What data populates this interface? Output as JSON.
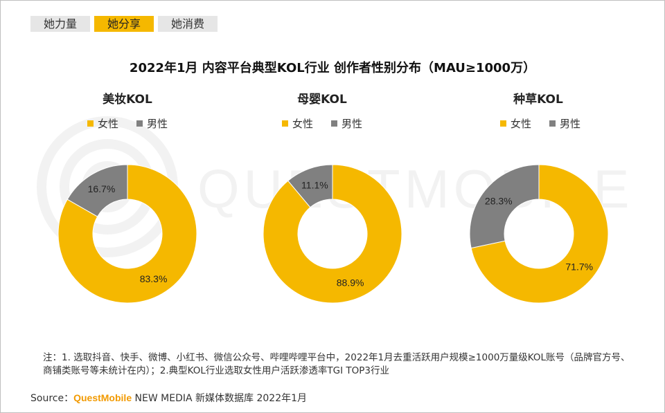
{
  "tabs": [
    {
      "label": "她力量",
      "active": false
    },
    {
      "label": "她分享",
      "active": true
    },
    {
      "label": "她消费",
      "active": false
    }
  ],
  "title": "2022年1月 内容平台典型KOL行业 创作者性别分布（MAU≥1000万）",
  "watermark_text": "QUESTMOBILE",
  "colors": {
    "female": "#f5b800",
    "male": "#808080",
    "tab_active": "#f5b800"
  },
  "chart_data": [
    {
      "type": "pie",
      "title": "美妆KOL",
      "categories": [
        "女性",
        "男性"
      ],
      "values": [
        83.3,
        16.7
      ],
      "labels": [
        "83.3%",
        "16.7%"
      ],
      "legend_position": "top"
    },
    {
      "type": "pie",
      "title": "母婴KOL",
      "categories": [
        "女性",
        "男性"
      ],
      "values": [
        88.9,
        11.1
      ],
      "labels": [
        "88.9%",
        "11.1%"
      ],
      "legend_position": "top"
    },
    {
      "type": "pie",
      "title": "种草KOL",
      "categories": [
        "女性",
        "男性"
      ],
      "values": [
        71.7,
        28.3
      ],
      "labels": [
        "71.7%",
        "28.3%"
      ],
      "legend_position": "top"
    }
  ],
  "note": "注：1. 选取抖音、快手、微博、小红书、微信公众号、哔哩哔哩平台中，2022年1月去重活跃用户规模≥1000万量级KOL账号（品牌官方号、商铺类账号等未统计在内）；2.典型KOL行业选取女性用户活跃渗透率TGI TOP3行业",
  "source": {
    "prefix": "Source：",
    "brand": "QuestMobile",
    "rest": " NEW MEDIA 新媒体数据库 2022年1月"
  }
}
